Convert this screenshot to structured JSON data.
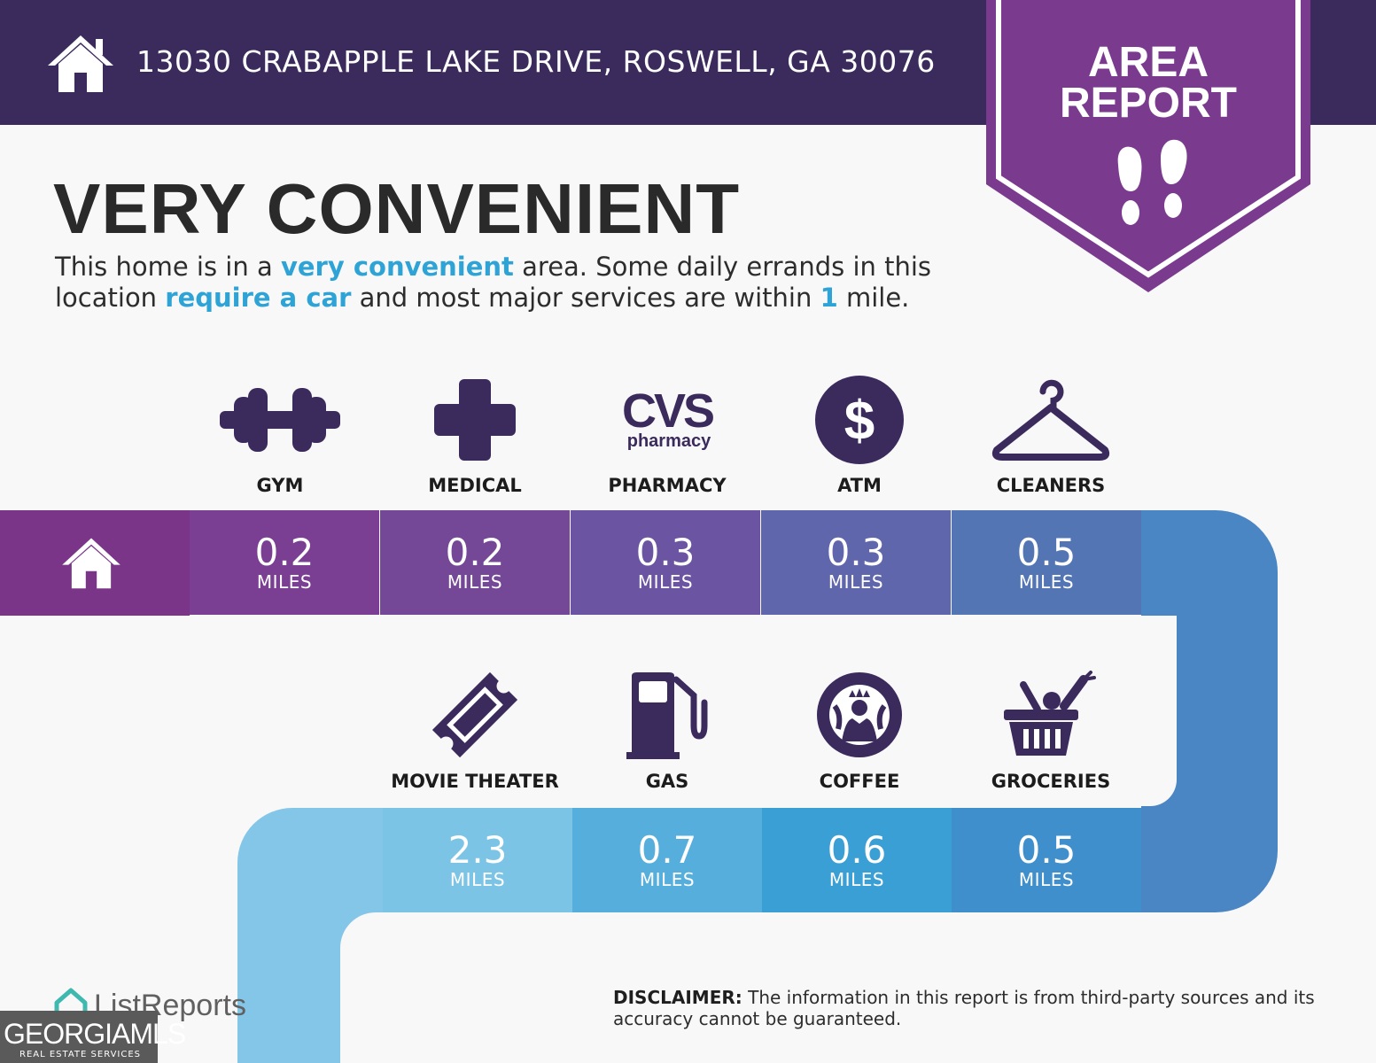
{
  "header": {
    "address": "13030 CRABAPPLE LAKE DRIVE, ROSWELL, GA 30076",
    "badge_line1": "AREA",
    "badge_line2": "REPORT"
  },
  "headline": "VERY CONVENIENT",
  "description": {
    "p1": "This home is in a ",
    "h1": "very convenient",
    "p2": " area. Some daily errands in this location ",
    "h2": "require a car",
    "p3": " and most major services are within ",
    "h3": "1",
    "p4": " mile."
  },
  "row1": [
    {
      "label": "GYM",
      "distance": "0.2",
      "unit": "MILES",
      "icon": "dumbbell-icon",
      "color": "#7a3f93"
    },
    {
      "label": "MEDICAL",
      "distance": "0.2",
      "unit": "MILES",
      "icon": "medical-cross-icon",
      "color": "#744797"
    },
    {
      "label": "PHARMACY",
      "distance": "0.3",
      "unit": "MILES",
      "icon": "cvs-pharmacy-logo",
      "color": "#6b55a2"
    },
    {
      "label": "ATM",
      "distance": "0.3",
      "unit": "MILES",
      "icon": "dollar-icon",
      "color": "#5f66ab"
    },
    {
      "label": "CLEANERS",
      "distance": "0.5",
      "unit": "MILES",
      "icon": "hanger-icon",
      "color": "#5375b4"
    }
  ],
  "row2": [
    {
      "label": "MOVIE THEATER",
      "distance": "2.3",
      "unit": "MILES",
      "icon": "ticket-icon",
      "color": "#7cc4e6"
    },
    {
      "label": "GAS",
      "distance": "0.7",
      "unit": "MILES",
      "icon": "gas-pump-icon",
      "color": "#56aedd"
    },
    {
      "label": "COFFEE",
      "distance": "0.6",
      "unit": "MILES",
      "icon": "starbucks-logo",
      "color": "#3a9fd4"
    },
    {
      "label": "GROCERIES",
      "distance": "0.5",
      "unit": "MILES",
      "icon": "grocery-basket-icon",
      "color": "#3e8fcb"
    }
  ],
  "logos": {
    "cvs_text": "CVS",
    "cvs_sub": "pharmacy",
    "listreports": "ListReports",
    "gmls_name": "GEORGIAMLS",
    "gmls_sub": "REAL ESTATE SERVICES"
  },
  "disclaimer": {
    "label": "DISCLAIMER:",
    "text": " The information in this report is from third-party sources and its accuracy cannot be guaranteed."
  },
  "colors": {
    "header_bg": "#3b2a5c",
    "badge": "#7a3b8f",
    "icon": "#3b2a5c",
    "highlight": "#2ea3d6"
  }
}
